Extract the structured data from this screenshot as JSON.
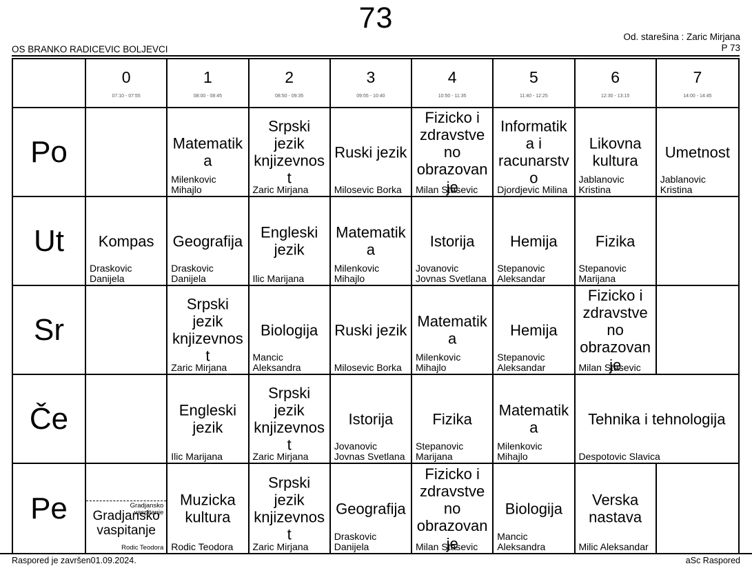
{
  "page": {
    "title": "73",
    "school": "OS BRANKO RADICEVIC BOLJEVCI",
    "homeroom": "Od. starešina : Zaric Mirjana",
    "page_ref": "P 73",
    "footer_left": "Raspored je završen01.09.2024.",
    "footer_right": "aSc Raspored"
  },
  "periods": [
    {
      "label": "0",
      "time": "07:10 - 07:55"
    },
    {
      "label": "1",
      "time": "08:00 - 08:45"
    },
    {
      "label": "2",
      "time": "08:50 - 09:35"
    },
    {
      "label": "3",
      "time": "09:55 - 10:40"
    },
    {
      "label": "4",
      "time": "10:50 - 11:35"
    },
    {
      "label": "5",
      "time": "11:40 - 12:25"
    },
    {
      "label": "6",
      "time": "12:30 - 13:15"
    },
    {
      "label": "7",
      "time": "14:00 - 14:45"
    }
  ],
  "days": [
    {
      "label": "Po",
      "cells": [
        null,
        {
          "subject": "Matematika",
          "teacher": "Milenkovic Mihajlo"
        },
        {
          "subject": "Srpski jezik knjizevnost",
          "teacher": "Zaric Mirjana"
        },
        {
          "subject": "Ruski jezik",
          "teacher": "Milosevic Borka"
        },
        {
          "subject": "Fizicko i zdravstveno obrazovanje",
          "teacher": "Milan Stasevic"
        },
        {
          "subject": "Informatika i racunarstvo",
          "teacher": "Djordjevic Milina"
        },
        {
          "subject": "Likovna kultura",
          "teacher": "Jablanovic Kristina"
        },
        {
          "subject": "Umetnost",
          "teacher": "Jablanovic Kristina"
        }
      ]
    },
    {
      "label": "Ut",
      "cells": [
        {
          "subject": "Kompas",
          "teacher": "Draskovic Danijela"
        },
        {
          "subject": "Geografija",
          "teacher": "Draskovic Danijela"
        },
        {
          "subject": "Engleski jezik",
          "teacher": "Ilic Marijana"
        },
        {
          "subject": "Matematika",
          "teacher": "Milenkovic Mihajlo"
        },
        {
          "subject": "Istorija",
          "teacher": "Jovanovic Jovnas Svetlana"
        },
        {
          "subject": "Hemija",
          "teacher": "Stepanovic Aleksandar"
        },
        {
          "subject": "Fizika",
          "teacher": "Stepanovic Marijana"
        },
        null
      ]
    },
    {
      "label": "Sr",
      "cells": [
        null,
        {
          "subject": "Srpski jezik knjizevnost",
          "teacher": "Zaric Mirjana"
        },
        {
          "subject": "Biologija",
          "teacher": "Mancic Aleksandra"
        },
        {
          "subject": "Ruski jezik",
          "teacher": "Milosevic Borka"
        },
        {
          "subject": "Matematika",
          "teacher": "Milenkovic Mihajlo"
        },
        {
          "subject": "Hemija",
          "teacher": "Stepanovic Aleksandar"
        },
        {
          "subject": "Fizicko i zdravstveno obrazovanje",
          "teacher": "Milan Stasevic"
        },
        null
      ]
    },
    {
      "label": "Če",
      "cells": [
        null,
        {
          "subject": "Engleski jezik",
          "teacher": "Ilic Marijana"
        },
        {
          "subject": "Srpski jezik knjizevnost",
          "teacher": "Zaric Mirjana"
        },
        {
          "subject": "Istorija",
          "teacher": "Jovanovic Jovnas Svetlana"
        },
        {
          "subject": "Fizika",
          "teacher": "Stepanovic Marijana"
        },
        {
          "subject": "Matematika",
          "teacher": "Milenkovic Mihajlo"
        },
        {
          "subject": "Tehnika i tehnologija",
          "teacher": "Despotovic Slavica",
          "span": 2
        }
      ]
    },
    {
      "label": "Pe",
      "cells": [
        {
          "split": true,
          "subject": "Gradjansko vaspitanje",
          "teacher": "Rodic Teodora",
          "small_subject": "Gradjansko vaspitanje",
          "small_teacher": "Rodic Teodora"
        },
        {
          "subject": "Muzicka kultura",
          "teacher": "Rodic Teodora"
        },
        {
          "subject": "Srpski jezik knjizevnost",
          "teacher": "Zaric Mirjana"
        },
        {
          "subject": "Geografija",
          "teacher": "Draskovic Danijela"
        },
        {
          "subject": "Fizicko i zdravstveno obrazovanje",
          "teacher": "Milan Stasevic"
        },
        {
          "subject": "Biologija",
          "teacher": "Mancic Aleksandra"
        },
        {
          "subject": "Verska nastava",
          "teacher": "Milic Aleksandar"
        },
        null
      ]
    }
  ]
}
